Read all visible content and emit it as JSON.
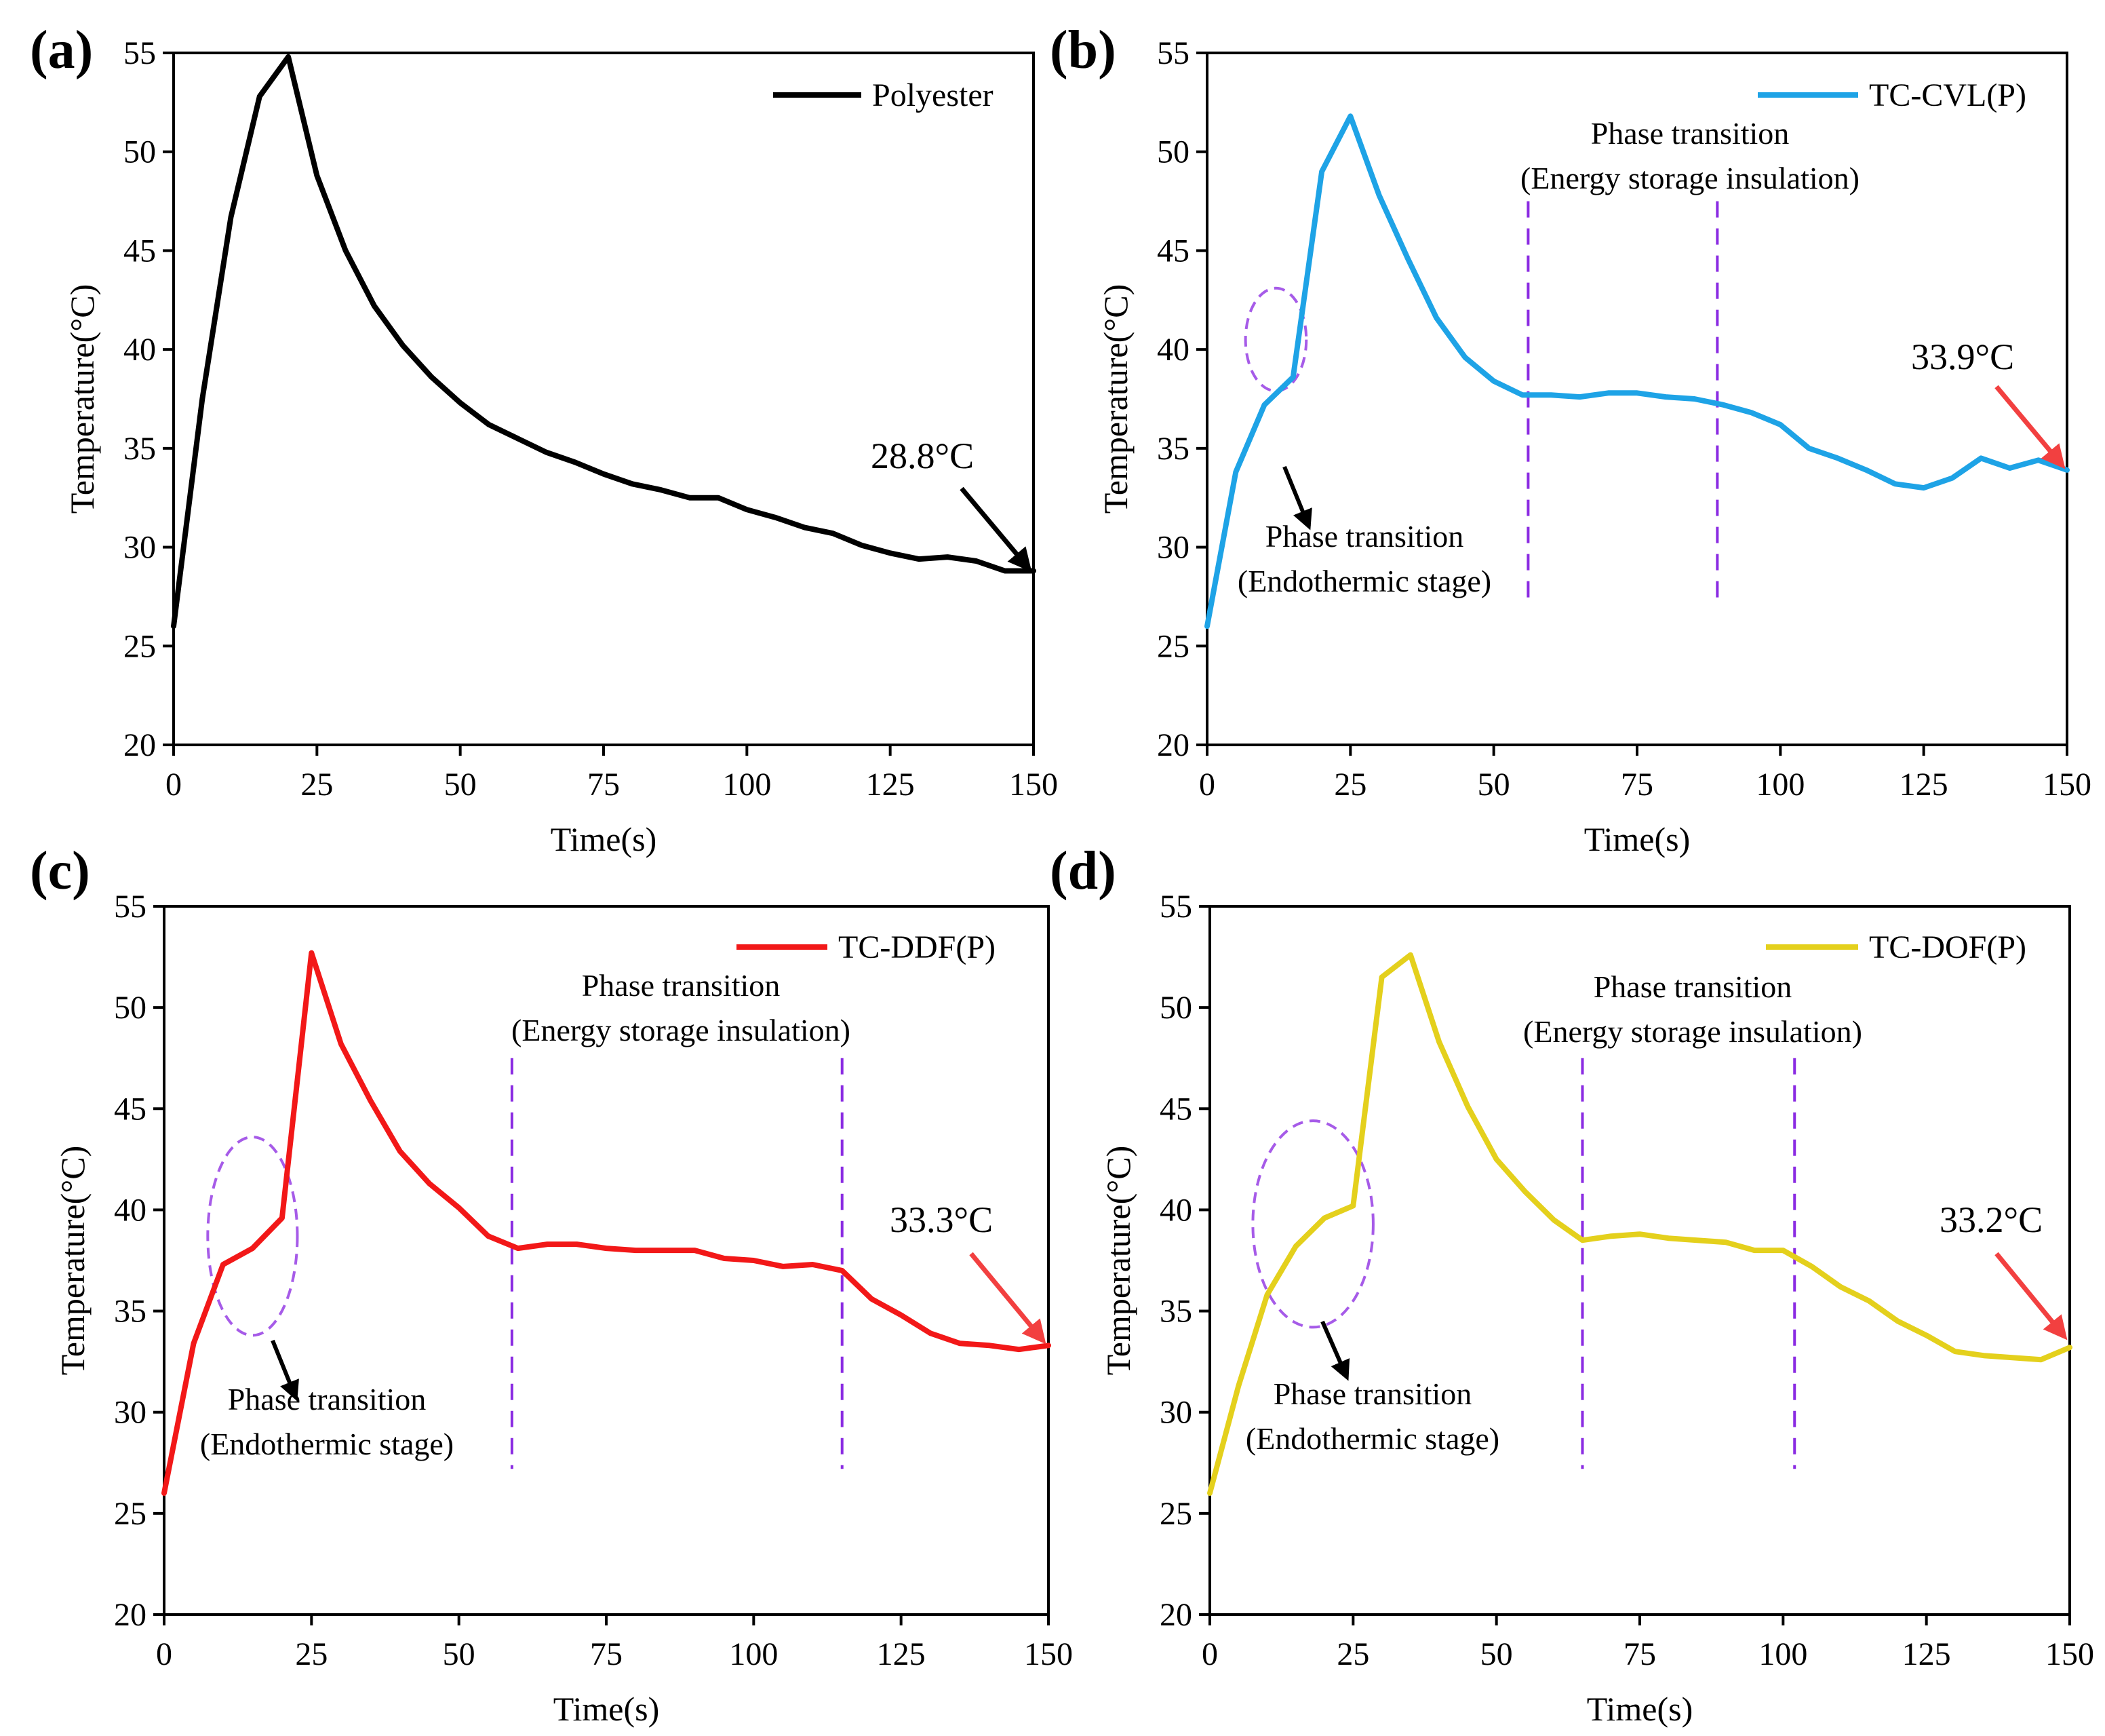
{
  "chart_data": [
    {
      "panel": "(a)",
      "type": "line",
      "xlabel": "Time(s)",
      "ylabel": "Temperature(°C)",
      "xlim": [
        0,
        150
      ],
      "ylim": [
        20,
        55
      ],
      "xticks": [
        0,
        25,
        50,
        75,
        100,
        125,
        150
      ],
      "yticks": [
        20,
        25,
        30,
        35,
        40,
        45,
        50,
        55
      ],
      "legend_position": "top-right",
      "series": [
        {
          "name": "Polyester",
          "color": "#000000",
          "x": [
            0,
            5,
            10,
            15,
            20,
            25,
            30,
            35,
            40,
            45,
            50,
            55,
            60,
            65,
            70,
            75,
            80,
            85,
            90,
            95,
            100,
            105,
            110,
            115,
            120,
            125,
            130,
            135,
            140,
            145,
            150
          ],
          "y": [
            26.0,
            37.5,
            46.7,
            52.8,
            54.8,
            48.8,
            45.0,
            42.2,
            40.2,
            38.6,
            37.3,
            36.2,
            35.5,
            34.8,
            34.3,
            33.7,
            33.2,
            32.9,
            32.5,
            32.5,
            31.9,
            31.5,
            31.0,
            30.7,
            30.1,
            29.7,
            29.4,
            29.5,
            29.3,
            28.8,
            28.8
          ]
        }
      ],
      "end_annotation": {
        "text": "28.8°C",
        "arrow_color": "#000000"
      },
      "phase_lines": [],
      "ellipse": null,
      "annotations": []
    },
    {
      "panel": "(b)",
      "type": "line",
      "xlabel": "Time(s)",
      "ylabel": "Temperature(°C)",
      "xlim": [
        0,
        150
      ],
      "ylim": [
        20,
        55
      ],
      "xticks": [
        0,
        25,
        50,
        75,
        100,
        125,
        150
      ],
      "yticks": [
        20,
        25,
        30,
        35,
        40,
        45,
        50,
        55
      ],
      "legend_position": "top-right",
      "series": [
        {
          "name": "TC-CVL(P)",
          "color": "#1ea3e6",
          "x": [
            0,
            5,
            10,
            15,
            20,
            25,
            30,
            35,
            40,
            45,
            50,
            55,
            60,
            65,
            70,
            75,
            80,
            85,
            90,
            95,
            100,
            105,
            110,
            115,
            120,
            125,
            130,
            135,
            140,
            145,
            150
          ],
          "y": [
            26.0,
            33.8,
            37.2,
            38.6,
            49.0,
            51.8,
            47.8,
            44.6,
            41.6,
            39.6,
            38.4,
            37.7,
            37.7,
            37.6,
            37.8,
            37.8,
            37.6,
            37.5,
            37.2,
            36.8,
            36.2,
            35.0,
            34.5,
            33.9,
            33.2,
            33.0,
            33.5,
            34.5,
            34.0,
            34.4,
            33.9
          ]
        }
      ],
      "end_annotation": {
        "text": "33.9°C",
        "arrow_color": "#f24040"
      },
      "phase_lines": [
        56,
        89
      ],
      "ellipse": {
        "cx": 12,
        "cy": 40.5,
        "rx": 5.3,
        "ry": 2.6
      },
      "annotations": [
        {
          "id": "storage",
          "lines": [
            "Phase transition",
            "(Energy storage insulation)"
          ]
        },
        {
          "id": "endo",
          "lines": [
            "Phase transition",
            "(Endothermic stage)"
          ]
        }
      ]
    },
    {
      "panel": "(c)",
      "type": "line",
      "xlabel": "Time(s)",
      "ylabel": "Temperature(°C)",
      "xlim": [
        0,
        150
      ],
      "ylim": [
        20,
        55
      ],
      "xticks": [
        0,
        25,
        50,
        75,
        100,
        125,
        150
      ],
      "yticks": [
        20,
        25,
        30,
        35,
        40,
        45,
        50,
        55
      ],
      "legend_position": "top-right",
      "series": [
        {
          "name": "TC-DDF(P)",
          "color": "#f21818",
          "x": [
            0,
            5,
            10,
            15,
            20,
            25,
            30,
            35,
            40,
            45,
            50,
            55,
            60,
            65,
            70,
            75,
            80,
            85,
            90,
            95,
            100,
            105,
            110,
            115,
            120,
            125,
            130,
            135,
            140,
            145,
            150
          ],
          "y": [
            26.0,
            33.4,
            37.3,
            38.1,
            39.6,
            52.7,
            48.2,
            45.4,
            42.9,
            41.3,
            40.1,
            38.7,
            38.1,
            38.3,
            38.3,
            38.1,
            38.0,
            38.0,
            38.0,
            37.6,
            37.5,
            37.2,
            37.3,
            37.0,
            35.6,
            34.8,
            33.9,
            33.4,
            33.3,
            33.1,
            33.3
          ]
        }
      ],
      "end_annotation": {
        "text": "33.3°C",
        "arrow_color": "#f24040"
      },
      "phase_lines": [
        59,
        115
      ],
      "ellipse": {
        "cx": 15,
        "cy": 38.7,
        "rx": 7.6,
        "ry": 4.9
      },
      "annotations": [
        {
          "id": "storage",
          "lines": [
            "Phase transition",
            "(Energy storage insulation)"
          ]
        },
        {
          "id": "endo",
          "lines": [
            "Phase transition",
            "(Endothermic stage)"
          ]
        }
      ]
    },
    {
      "panel": "(d)",
      "type": "line",
      "xlabel": "Time(s)",
      "ylabel": "Temperature(°C)",
      "xlim": [
        0,
        150
      ],
      "ylim": [
        20,
        55
      ],
      "xticks": [
        0,
        25,
        50,
        75,
        100,
        125,
        150
      ],
      "yticks": [
        20,
        25,
        30,
        35,
        40,
        45,
        50,
        55
      ],
      "legend_position": "top-right",
      "series": [
        {
          "name": "TC-DOF(P)",
          "color": "#e4d01c",
          "x": [
            0,
            5,
            10,
            15,
            20,
            25,
            30,
            35,
            40,
            45,
            50,
            55,
            60,
            65,
            70,
            75,
            80,
            85,
            90,
            95,
            100,
            105,
            110,
            115,
            120,
            125,
            130,
            135,
            140,
            145,
            150
          ],
          "y": [
            26.0,
            31.3,
            35.8,
            38.2,
            39.6,
            40.2,
            51.5,
            52.6,
            48.3,
            45.1,
            42.5,
            40.9,
            39.5,
            38.5,
            38.7,
            38.8,
            38.6,
            38.5,
            38.4,
            38.0,
            38.0,
            37.2,
            36.2,
            35.5,
            34.5,
            33.8,
            33.0,
            32.8,
            32.7,
            32.6,
            33.2
          ]
        }
      ],
      "end_annotation": {
        "text": "33.2°C",
        "arrow_color": "#f24040"
      },
      "phase_lines": [
        65,
        102
      ],
      "ellipse": {
        "cx": 18,
        "cy": 39.3,
        "rx": 10.5,
        "ry": 5.1
      },
      "annotations": [
        {
          "id": "storage",
          "lines": [
            "Phase transition",
            "(Energy storage insulation)"
          ]
        },
        {
          "id": "endo",
          "lines": [
            "Phase transition",
            "(Endothermic stage)"
          ]
        }
      ]
    }
  ],
  "colors": {
    "phase_line": "#8a2be2",
    "ellipse": "#a65be8"
  }
}
